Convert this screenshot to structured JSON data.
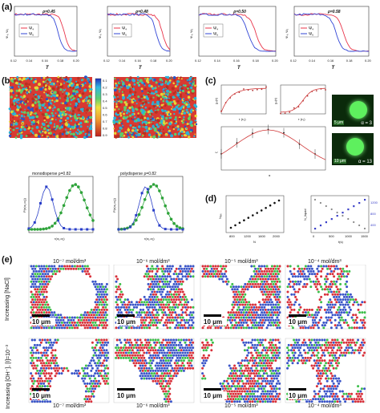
{
  "panels": {
    "a": {
      "label": "(a)",
      "axis_x": "T",
      "axis_y": "Ψ₄, Ψ₆",
      "plots": [
        {
          "p": "ρ=0.45",
          "ticks": [
            "0.12",
            "0.14",
            "0.16",
            "0.18",
            "0.20"
          ]
        },
        {
          "p": "ρ=0.48",
          "ticks": [
            "0.12",
            "0.14",
            "0.16",
            "0.18",
            "0.20"
          ]
        },
        {
          "p": "ρ=0.50",
          "ticks": [
            "0.12",
            "0.14",
            "0.16",
            "0.18",
            "0.20"
          ]
        },
        {
          "p": "ρ=0.58",
          "ticks": [
            "0.12",
            "0.14",
            "0.16",
            "0.18",
            "0.20"
          ]
        }
      ],
      "legend": [
        "Ψ₄",
        "Ψ₆"
      ]
    },
    "b": {
      "label": "(b)",
      "colorbar_ticks": [
        "0.1",
        "0.2",
        "0.3",
        "0.4",
        "0.5",
        "0.6",
        "0.7",
        "0.8",
        "0.9"
      ],
      "hist1_title": "monodisperse ρ=0.82",
      "hist2_title": "polydisperse ρ=0.82",
      "hist_xlabel": "r(α₁,α₂)",
      "hist_ylabel": "P(r(α₁,α₂))"
    },
    "c": {
      "label": "(c)",
      "plot1_ylabel": "χ₄(τ)",
      "plot1_xlabel": "τ (τ₀)",
      "plot2_ylabel": "χ₄(τ)",
      "plot2_xlabel": "τ (τ₀)",
      "plot3_ylabel": "ξ",
      "plot3_xlabel": "α",
      "micro1_scale": "5 μm",
      "micro1_alpha": "α = 3",
      "micro2_scale": "10 μm",
      "micro2_alpha": "α = 13"
    },
    "d": {
      "label": "(d)",
      "plot1_ylabel": "Nₑₓₜ",
      "plot1_xlabel": "N",
      "plot1_xticks": [
        "800",
        "1200",
        "1600",
        "2000"
      ],
      "plot2_ylabel": "N_liquid",
      "plot2_xlabel": "t(s)",
      "plot2_xticks": [
        "0",
        "500",
        "1000",
        "1500"
      ],
      "plot2_yright": [
        "400",
        "800",
        "1200"
      ]
    },
    "e": {
      "label": "(e)",
      "row1_label": "Increasing [NaCl]",
      "row2_label": "Increasing [OH⁻], [I]=10⁻³",
      "top_conc": [
        "10⁻⁷ mol/dm³",
        "10⁻⁶ mol/dm³",
        "10⁻⁵ mol/dm³",
        "10⁻⁴ mol/dm³"
      ],
      "bottom_conc": [
        "10⁻⁷ mol/dm³",
        "10⁻⁶ mol/dm³",
        "10⁻⁵ mol/dm³",
        "10⁻⁴ mol/dm³"
      ],
      "scale": "10 μm"
    }
  },
  "colors": {
    "psi4": "#e8344a",
    "psi6": "#3246d6",
    "particle_red": "#d8303a",
    "particle_green": "#3cbf4a",
    "particle_blue": "#3a55c8"
  }
}
